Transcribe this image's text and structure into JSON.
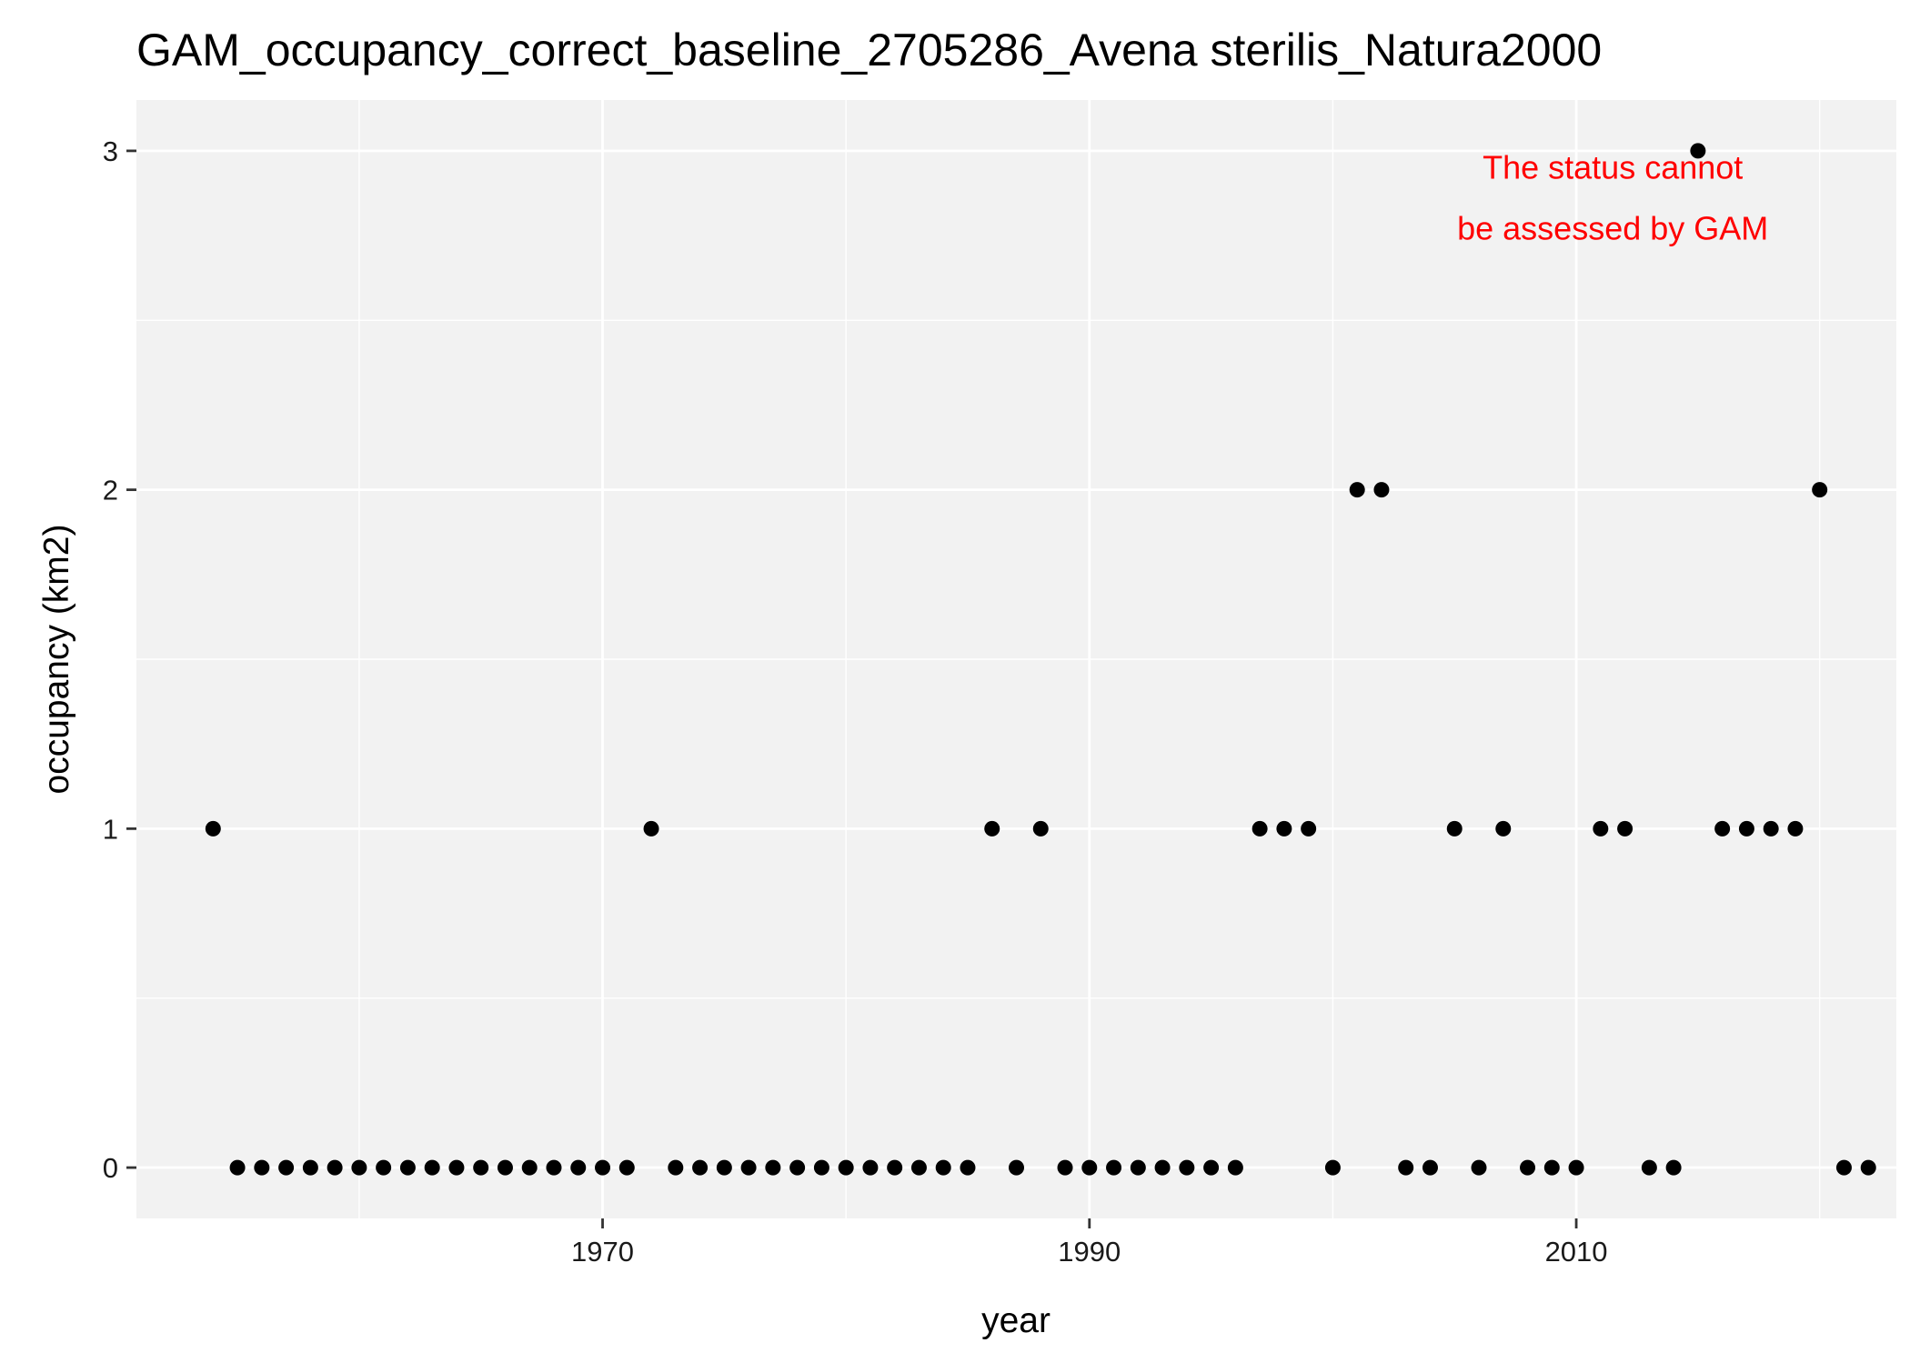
{
  "chart_data": {
    "type": "scatter",
    "title": "GAM_occupancy_correct_baseline_2705286_Avena sterilis_Natura2000",
    "xlabel": "year",
    "ylabel": "occupancy (km2)",
    "xlim": [
      1950.85,
      2023.15
    ],
    "ylim": [
      -0.15,
      3.15
    ],
    "x_ticks": [
      1970,
      1990,
      2010
    ],
    "x_tick_labels": [
      "1970",
      "1990",
      "2010"
    ],
    "x_minor_ticks": [
      1960,
      1980,
      2000,
      2020
    ],
    "y_ticks": [
      0,
      1,
      2,
      3
    ],
    "y_tick_labels": [
      "0",
      "1",
      "2",
      "3"
    ],
    "y_minor_ticks": [
      0.5,
      1.5,
      2.5
    ],
    "grid": true,
    "legend": "none",
    "annotation": {
      "lines": [
        "The status cannot",
        "be assessed by GAM"
      ],
      "color": "#ff0000",
      "x": 2011.5,
      "y_lines": [
        2.95,
        2.77
      ]
    },
    "colors": {
      "panel": "#f2f2f2",
      "grid": "#ffffff",
      "point": "#000000",
      "text": "#000000",
      "tick_text": "#1a1a1a"
    },
    "x": [
      1954,
      1955,
      1956,
      1957,
      1958,
      1959,
      1960,
      1961,
      1962,
      1963,
      1964,
      1965,
      1966,
      1967,
      1968,
      1969,
      1970,
      1971,
      1972,
      1973,
      1974,
      1975,
      1976,
      1977,
      1978,
      1979,
      1980,
      1981,
      1982,
      1983,
      1984,
      1985,
      1986,
      1987,
      1988,
      1989,
      1990,
      1991,
      1992,
      1993,
      1994,
      1995,
      1996,
      1997,
      1998,
      1999,
      2000,
      2001,
      2002,
      2003,
      2004,
      2005,
      2006,
      2007,
      2008,
      2009,
      2010,
      2011,
      2012,
      2013,
      2014,
      2015,
      2016,
      2017,
      2018,
      2019,
      2020,
      2021,
      2022
    ],
    "y": [
      1,
      0,
      0,
      0,
      0,
      0,
      0,
      0,
      0,
      0,
      0,
      0,
      0,
      0,
      0,
      0,
      0,
      0,
      1,
      0,
      0,
      0,
      0,
      0,
      0,
      0,
      0,
      0,
      0,
      0,
      0,
      0,
      1,
      0,
      1,
      0,
      0,
      0,
      0,
      0,
      0,
      0,
      0,
      1,
      1,
      1,
      0,
      2,
      2,
      0,
      0,
      1,
      0,
      1,
      0,
      0,
      0,
      1,
      1,
      0,
      0,
      3,
      1,
      1,
      1,
      1,
      2,
      0,
      0
    ]
  }
}
